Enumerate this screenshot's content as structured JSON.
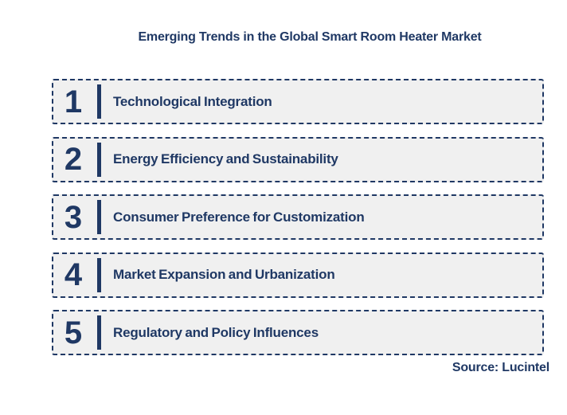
{
  "title": "Emerging Trends in the Global Smart Room Heater Market",
  "source_label": "Source: Lucintel",
  "colors": {
    "navy": "#1F3864",
    "box_fill": "#F0F0F0",
    "border": "#1F3864",
    "background": "#FFFFFF"
  },
  "trends": [
    {
      "number": "1",
      "label": "Technological Integration"
    },
    {
      "number": "2",
      "label": "Energy Efficiency and Sustainability"
    },
    {
      "number": "3",
      "label": "Consumer Preference for Customization"
    },
    {
      "number": "4",
      "label": "Market Expansion and Urbanization"
    },
    {
      "number": "5",
      "label": "Regulatory and Policy Influences"
    }
  ]
}
